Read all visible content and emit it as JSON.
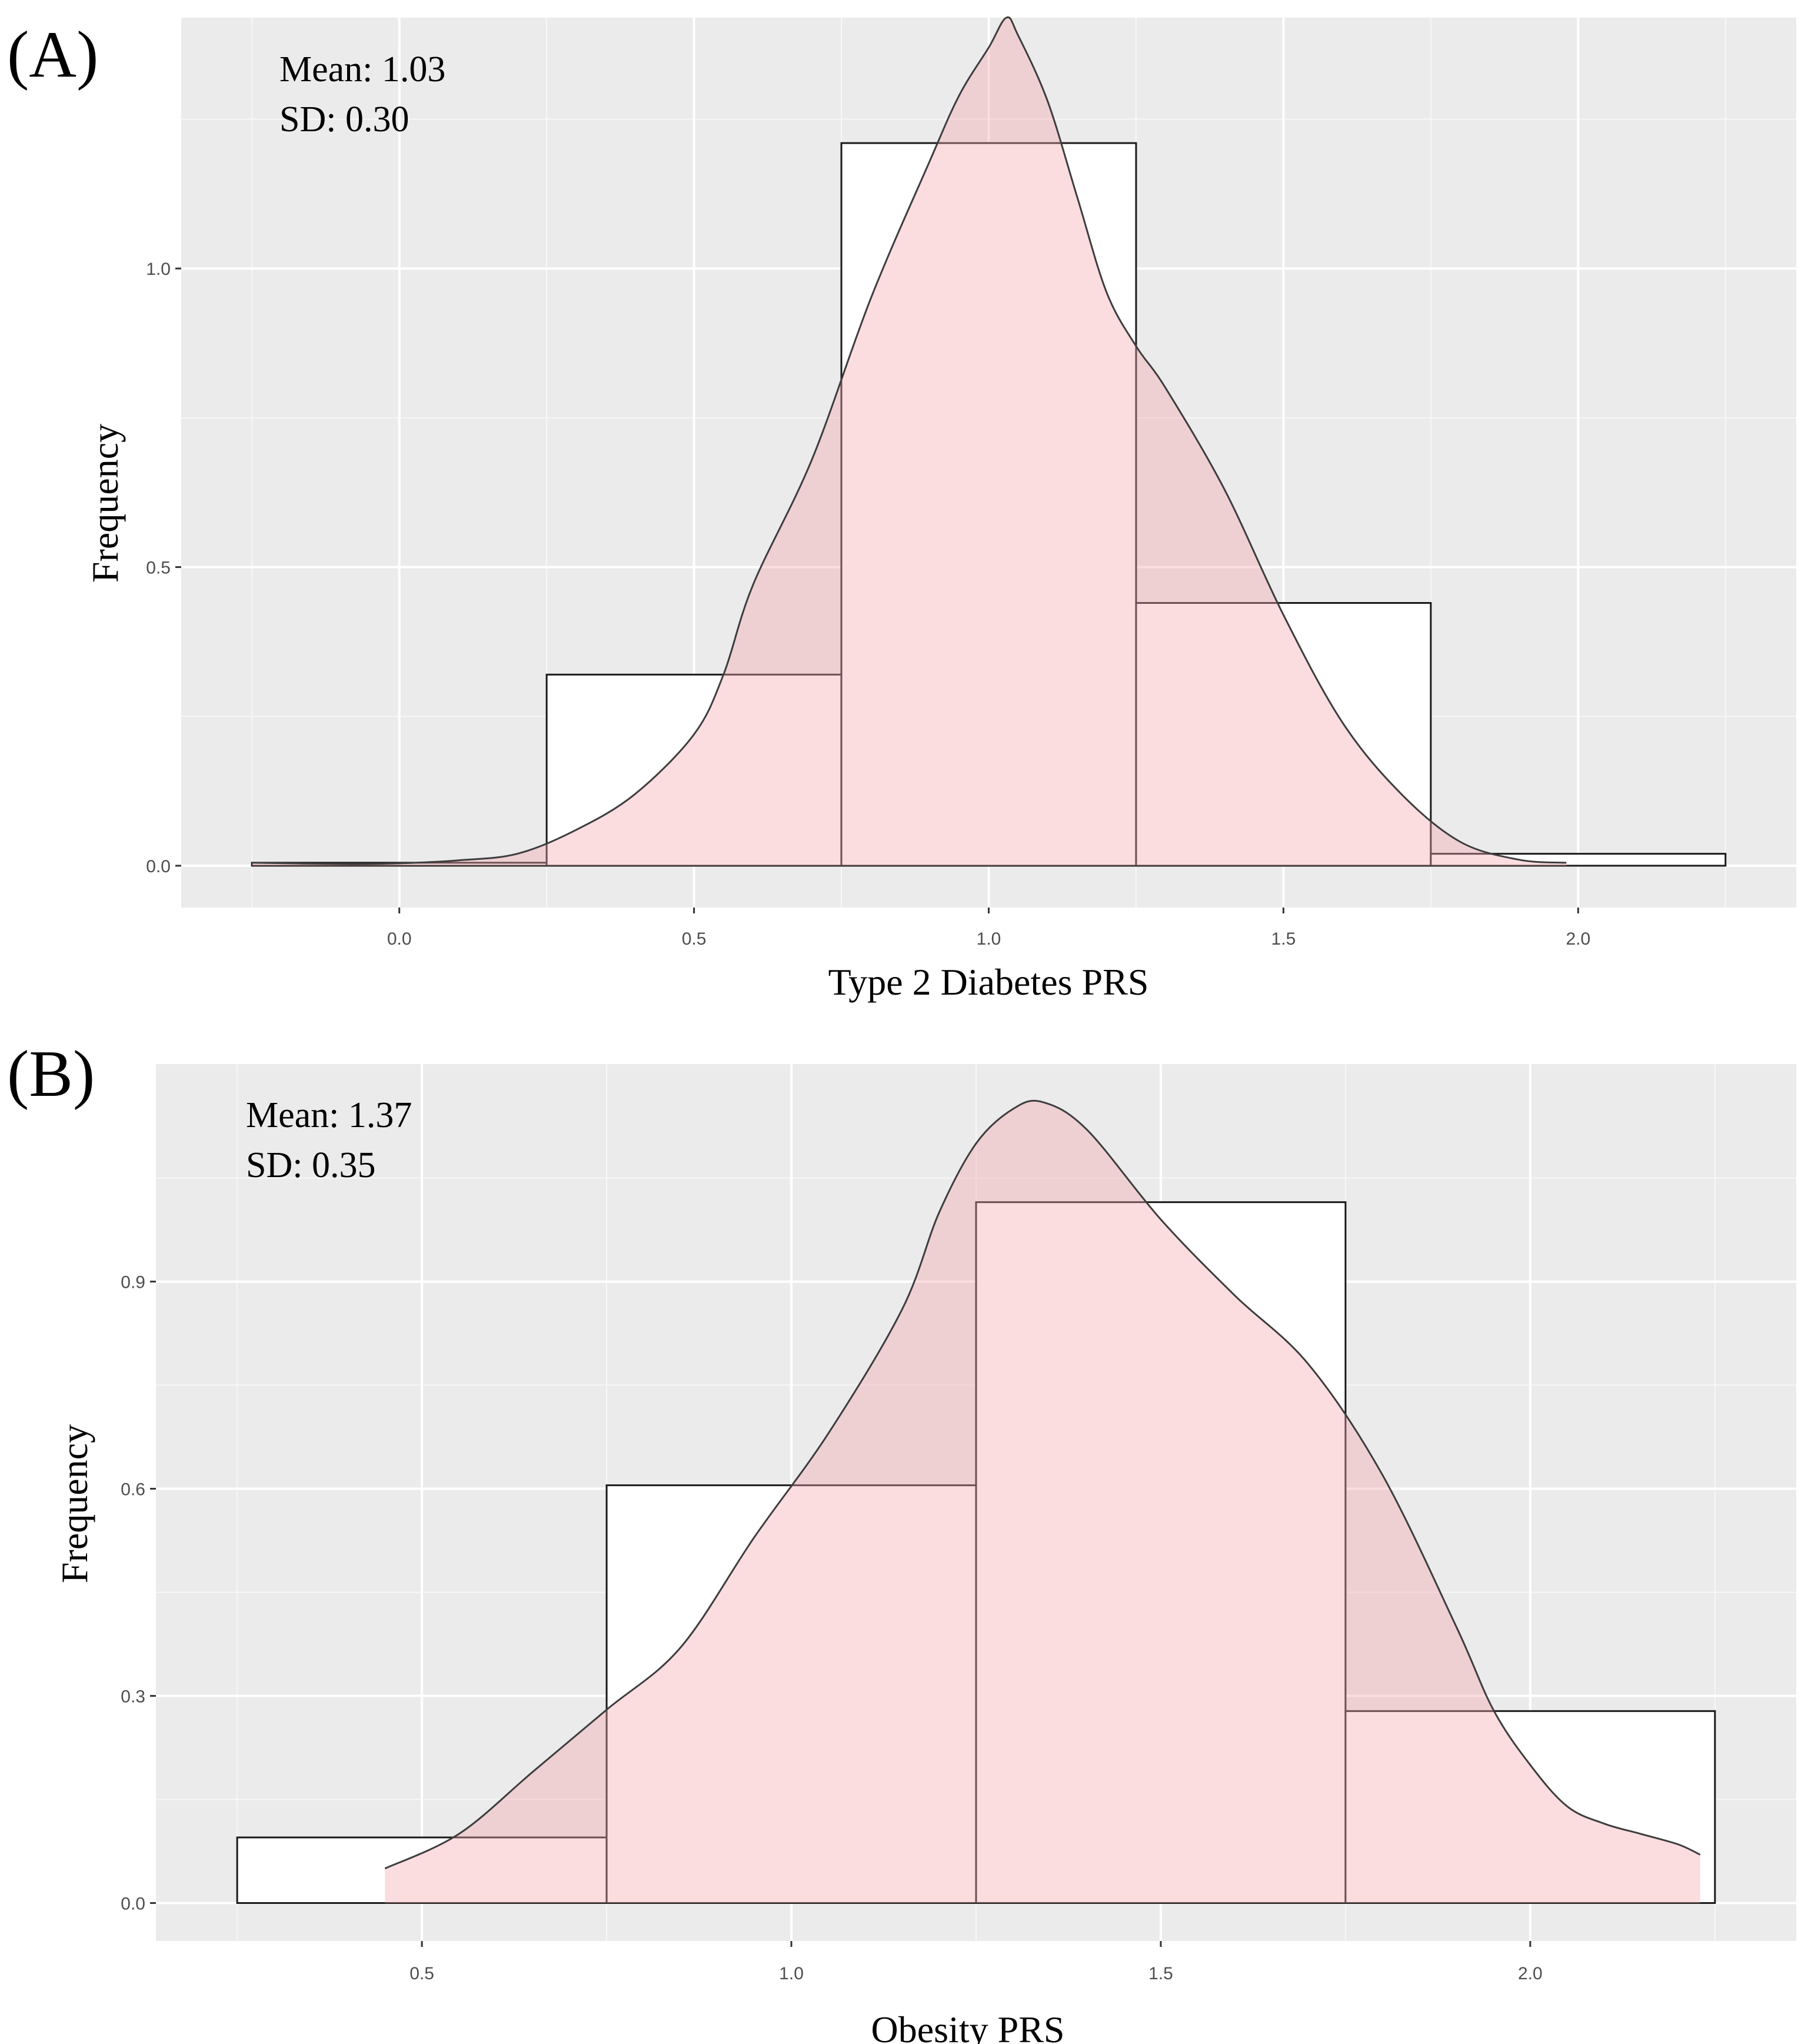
{
  "chart_data": [
    {
      "type": "histogram",
      "panel_label": "(A)",
      "annotation": {
        "mean_label": "Mean: 1.03",
        "sd_label": "SD: 0.30"
      },
      "xlabel": "Type 2 Diabetes PRS",
      "ylabel": "Frequency",
      "xlim": [
        -0.37,
        2.37
      ],
      "ylim": [
        -0.07,
        1.42
      ],
      "x_ticks": [
        0.0,
        0.5,
        1.0,
        1.5,
        2.0
      ],
      "x_tick_labels": [
        "0.0",
        "0.5",
        "1.0",
        "1.5",
        "2.0"
      ],
      "y_ticks": [
        0.0,
        0.5,
        1.0
      ],
      "y_tick_labels": [
        "0.0",
        "0.5",
        "1.0"
      ],
      "bins": [
        {
          "x0": -0.25,
          "x1": 0.25,
          "value": 0.005
        },
        {
          "x0": 0.25,
          "x1": 0.75,
          "value": 0.32
        },
        {
          "x0": 0.75,
          "x1": 1.25,
          "value": 1.21
        },
        {
          "x0": 1.25,
          "x1": 1.75,
          "value": 0.44
        },
        {
          "x0": 1.75,
          "x1": 2.25,
          "value": 0.02
        }
      ],
      "density": {
        "x": [
          -0.25,
          -0.1,
          0.0,
          0.1,
          0.2,
          0.3,
          0.4,
          0.5,
          0.55,
          0.6,
          0.7,
          0.8,
          0.9,
          0.95,
          1.0,
          1.03,
          1.05,
          1.1,
          1.15,
          1.2,
          1.25,
          1.3,
          1.4,
          1.5,
          1.6,
          1.7,
          1.8,
          1.9,
          1.98
        ],
        "y": [
          0.005,
          0.003,
          0.004,
          0.009,
          0.02,
          0.06,
          0.12,
          0.22,
          0.32,
          0.47,
          0.68,
          0.95,
          1.18,
          1.29,
          1.37,
          1.42,
          1.39,
          1.28,
          1.12,
          0.96,
          0.87,
          0.8,
          0.63,
          0.42,
          0.24,
          0.12,
          0.04,
          0.01,
          0.005
        ]
      }
    },
    {
      "type": "histogram",
      "panel_label": "(B)",
      "annotation": {
        "mean_label": "Mean: 1.37",
        "sd_label": "SD: 0.35"
      },
      "xlabel": "Obesity PRS",
      "ylabel": "Frequency",
      "xlim": [
        0.14,
        2.36
      ],
      "ylim": [
        -0.055,
        1.215
      ],
      "x_ticks": [
        0.5,
        1.0,
        1.5,
        2.0
      ],
      "x_tick_labels": [
        "0.5",
        "1.0",
        "1.5",
        "2.0"
      ],
      "y_ticks": [
        0.0,
        0.3,
        0.6,
        0.9
      ],
      "y_tick_labels": [
        "0.0",
        "0.3",
        "0.6",
        "0.9"
      ],
      "bins": [
        {
          "x0": 0.25,
          "x1": 0.75,
          "value": 0.095
        },
        {
          "x0": 0.75,
          "x1": 1.25,
          "value": 0.605
        },
        {
          "x0": 1.25,
          "x1": 1.75,
          "value": 1.015
        },
        {
          "x0": 1.75,
          "x1": 2.25,
          "value": 0.278
        }
      ],
      "density": {
        "x": [
          0.45,
          0.55,
          0.65,
          0.75,
          0.85,
          0.95,
          1.05,
          1.15,
          1.2,
          1.25,
          1.3,
          1.34,
          1.4,
          1.5,
          1.6,
          1.7,
          1.8,
          1.9,
          1.95,
          2.0,
          2.05,
          2.1,
          2.15,
          2.2,
          2.23
        ],
        "y": [
          0.05,
          0.1,
          0.19,
          0.28,
          0.37,
          0.53,
          0.68,
          0.86,
          1.0,
          1.1,
          1.15,
          1.16,
          1.12,
          0.99,
          0.88,
          0.78,
          0.62,
          0.4,
          0.28,
          0.2,
          0.14,
          0.115,
          0.1,
          0.085,
          0.07
        ]
      }
    }
  ]
}
